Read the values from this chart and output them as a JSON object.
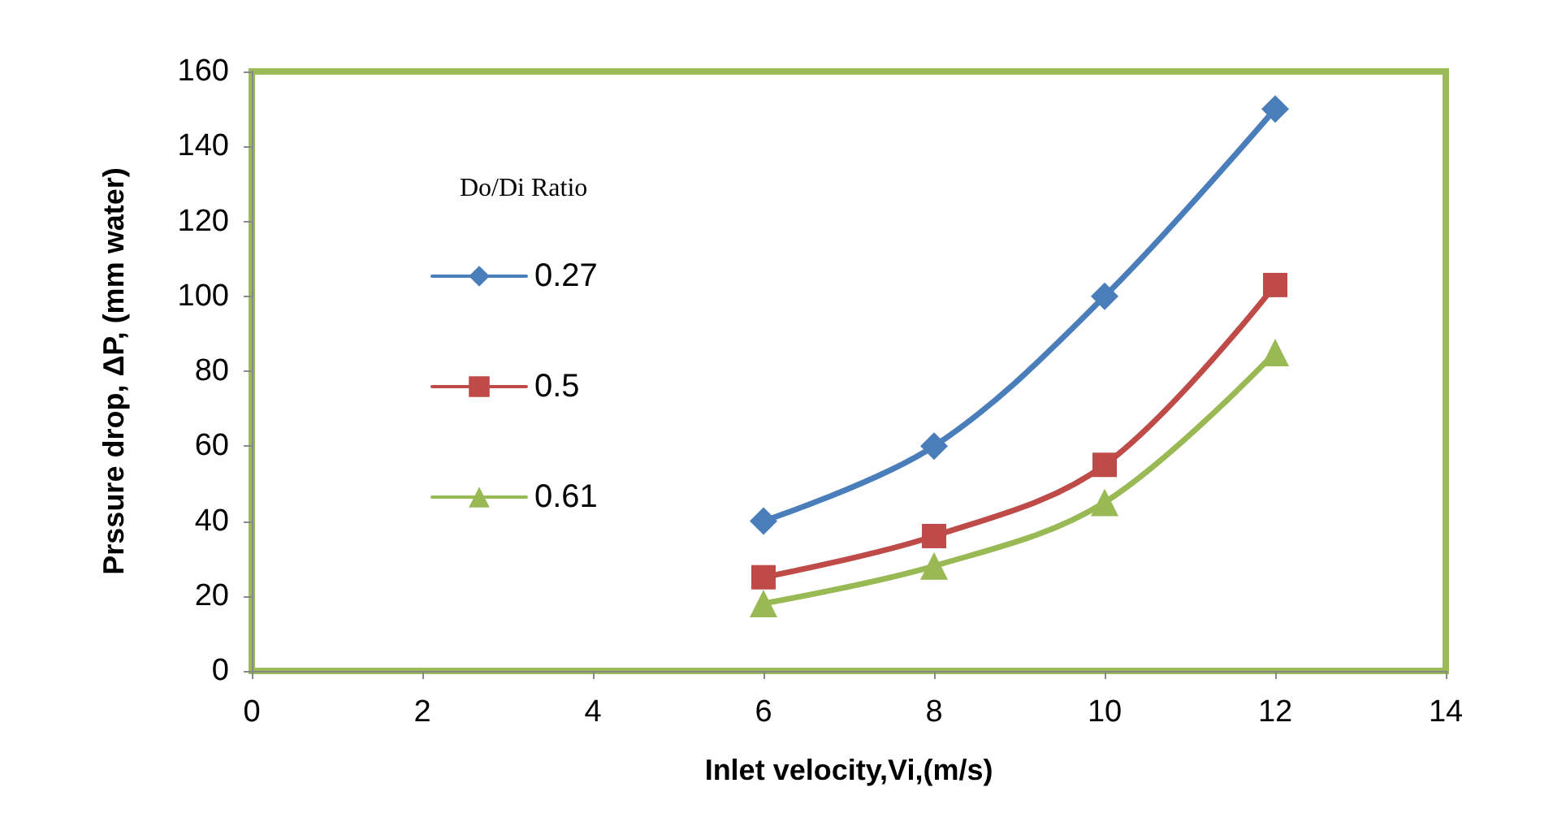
{
  "chart_data": {
    "type": "line",
    "xlabel": "Inlet velocity,Vi,(m/s)",
    "ylabel": "Prssure drop, ΔP, (mm water)",
    "legend_title": "Do/Di Ratio",
    "legend": "left",
    "grid": false,
    "xlim": [
      0,
      14
    ],
    "xticks": [
      0,
      2,
      4,
      6,
      8,
      10,
      12,
      14
    ],
    "ylim": [
      0,
      160
    ],
    "yticks": [
      0,
      20,
      40,
      60,
      80,
      100,
      120,
      140,
      160
    ],
    "x": [
      6,
      8,
      10,
      12
    ],
    "series": [
      {
        "name": "0.27",
        "color": "#4a7ebb",
        "marker": "diamond",
        "values": [
          40,
          60,
          100,
          150
        ]
      },
      {
        "name": "0.5",
        "color": "#be4b48",
        "marker": "square",
        "values": [
          25,
          36,
          55,
          103
        ]
      },
      {
        "name": "0.61",
        "color": "#98b954",
        "marker": "triangle",
        "values": [
          18,
          28,
          45,
          85
        ]
      }
    ]
  }
}
